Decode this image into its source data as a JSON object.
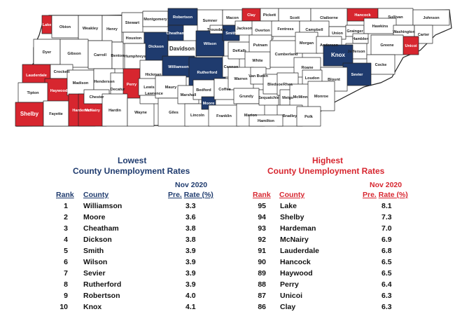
{
  "colors": {
    "lowest": "#1f3b6e",
    "highest": "#d7262f",
    "other": "#ffffff"
  },
  "map": {
    "counties": [
      {
        "name": "Lake",
        "group": "high"
      },
      {
        "name": "Obion",
        "group": "none"
      },
      {
        "name": "Weakley",
        "group": "none"
      },
      {
        "name": "Henry",
        "group": "none"
      },
      {
        "name": "Stewart",
        "group": "none"
      },
      {
        "name": "Montgomery",
        "group": "none"
      },
      {
        "name": "Robertson",
        "group": "low"
      },
      {
        "name": "Sumner",
        "group": "none"
      },
      {
        "name": "Macon",
        "group": "none"
      },
      {
        "name": "Clay",
        "group": "high"
      },
      {
        "name": "Pickett",
        "group": "none"
      },
      {
        "name": "Scott",
        "group": "none"
      },
      {
        "name": "Claiborne",
        "group": "none"
      },
      {
        "name": "Hancock",
        "group": "high"
      },
      {
        "name": "Sullivan",
        "group": "none"
      },
      {
        "name": "Johnson",
        "group": "none"
      },
      {
        "name": "Dyer",
        "group": "none"
      },
      {
        "name": "Gibson",
        "group": "none"
      },
      {
        "name": "Carroll",
        "group": "none"
      },
      {
        "name": "Benton",
        "group": "none"
      },
      {
        "name": "Houston",
        "group": "none"
      },
      {
        "name": "Cheatham",
        "group": "low"
      },
      {
        "name": "Dickson",
        "group": "low"
      },
      {
        "name": "Davidson",
        "group": "none"
      },
      {
        "name": "Wilson",
        "group": "low"
      },
      {
        "name": "Smith",
        "group": "low"
      },
      {
        "name": "Trousdale",
        "group": "none"
      },
      {
        "name": "Jackson",
        "group": "none"
      },
      {
        "name": "Overton",
        "group": "none"
      },
      {
        "name": "Fentress",
        "group": "none"
      },
      {
        "name": "Campbell",
        "group": "none"
      },
      {
        "name": "Union",
        "group": "none"
      },
      {
        "name": "Grainger",
        "group": "none"
      },
      {
        "name": "Hawkins",
        "group": "none"
      },
      {
        "name": "Washington",
        "group": "none"
      },
      {
        "name": "Carter",
        "group": "none"
      },
      {
        "name": "Unicoi",
        "group": "high"
      },
      {
        "name": "Greene",
        "group": "none"
      },
      {
        "name": "Hamblen",
        "group": "none"
      },
      {
        "name": "Jefferson",
        "group": "none"
      },
      {
        "name": "Cocke",
        "group": "none"
      },
      {
        "name": "Lauderdale",
        "group": "high"
      },
      {
        "name": "Crockett",
        "group": "none"
      },
      {
        "name": "Haywood",
        "group": "high"
      },
      {
        "name": "Madison",
        "group": "none"
      },
      {
        "name": "Henderson",
        "group": "none"
      },
      {
        "name": "Decatur",
        "group": "none"
      },
      {
        "name": "Humphreys",
        "group": "none"
      },
      {
        "name": "Perry",
        "group": "high"
      },
      {
        "name": "Hickman",
        "group": "none"
      },
      {
        "name": "Williamson",
        "group": "low"
      },
      {
        "name": "Rutherford",
        "group": "low"
      },
      {
        "name": "Cannon",
        "group": "none"
      },
      {
        "name": "DeKalb",
        "group": "none"
      },
      {
        "name": "Putnam",
        "group": "none"
      },
      {
        "name": "White",
        "group": "none"
      },
      {
        "name": "Cumberland",
        "group": "none"
      },
      {
        "name": "Morgan",
        "group": "none"
      },
      {
        "name": "Anderson",
        "group": "none"
      },
      {
        "name": "Roane",
        "group": "none"
      },
      {
        "name": "Knox",
        "group": "low"
      },
      {
        "name": "Sevier",
        "group": "low"
      },
      {
        "name": "Blount",
        "group": "none"
      },
      {
        "name": "Loudon",
        "group": "none"
      },
      {
        "name": "Tipton",
        "group": "none"
      },
      {
        "name": "Shelby",
        "group": "high"
      },
      {
        "name": "Fayette",
        "group": "none"
      },
      {
        "name": "Hardeman",
        "group": "high"
      },
      {
        "name": "McNairy",
        "group": "high"
      },
      {
        "name": "Chester",
        "group": "none"
      },
      {
        "name": "Hardin",
        "group": "none"
      },
      {
        "name": "Wayne",
        "group": "none"
      },
      {
        "name": "Lawrence",
        "group": "none"
      },
      {
        "name": "Lewis",
        "group": "none"
      },
      {
        "name": "Maury",
        "group": "none"
      },
      {
        "name": "Giles",
        "group": "none"
      },
      {
        "name": "Marshall",
        "group": "none"
      },
      {
        "name": "Lincoln",
        "group": "none"
      },
      {
        "name": "Bedford",
        "group": "none"
      },
      {
        "name": "Moore",
        "group": "low"
      },
      {
        "name": "Coffee",
        "group": "none"
      },
      {
        "name": "Franklin",
        "group": "none"
      },
      {
        "name": "Warren",
        "group": "none"
      },
      {
        "name": "Van Buren",
        "group": "none"
      },
      {
        "name": "Grundy",
        "group": "none"
      },
      {
        "name": "Marion",
        "group": "none"
      },
      {
        "name": "Sequatchie",
        "group": "none"
      },
      {
        "name": "Bledsoe",
        "group": "none"
      },
      {
        "name": "Rhea",
        "group": "none"
      },
      {
        "name": "Meigs",
        "group": "none"
      },
      {
        "name": "McMinn",
        "group": "none"
      },
      {
        "name": "Monroe",
        "group": "none"
      },
      {
        "name": "Bradley",
        "group": "none"
      },
      {
        "name": "Polk",
        "group": "none"
      },
      {
        "name": "Hamilton",
        "group": "none"
      }
    ]
  },
  "lowest": {
    "title_line1": "Lowest",
    "title_line2": "County Unemployment Rates",
    "period": "Nov 2020",
    "col_rank": "Rank",
    "col_county": "County",
    "col_rate_pre": "Pre.",
    "col_rate_main": "Rate (%)",
    "rows": [
      {
        "rank": "1",
        "county": "Williamson",
        "rate": "3.3"
      },
      {
        "rank": "2",
        "county": "Moore",
        "rate": "3.6"
      },
      {
        "rank": "3",
        "county": "Cheatham",
        "rate": "3.8"
      },
      {
        "rank": "4",
        "county": "Dickson",
        "rate": "3.8"
      },
      {
        "rank": "5",
        "county": "Smith",
        "rate": "3.9"
      },
      {
        "rank": "6",
        "county": "Wilson",
        "rate": "3.9"
      },
      {
        "rank": "7",
        "county": "Sevier",
        "rate": "3.9"
      },
      {
        "rank": "8",
        "county": "Rutherford",
        "rate": "3.9"
      },
      {
        "rank": "9",
        "county": "Robertson",
        "rate": "4.0"
      },
      {
        "rank": "10",
        "county": "Knox",
        "rate": "4.1"
      }
    ]
  },
  "highest": {
    "title_line1": "Highest",
    "title_line2": "County Unemployment Rates",
    "period": "Nov 2020",
    "col_rank": "Rank",
    "col_county": "County",
    "col_rate_pre": "Pre.",
    "col_rate_main": "Rate (%)",
    "rows": [
      {
        "rank": "95",
        "county": "Lake",
        "rate": "8.1"
      },
      {
        "rank": "94",
        "county": "Shelby",
        "rate": "7.3"
      },
      {
        "rank": "93",
        "county": "Hardeman",
        "rate": "7.0"
      },
      {
        "rank": "92",
        "county": "McNairy",
        "rate": "6.9"
      },
      {
        "rank": "91",
        "county": "Lauderdale",
        "rate": "6.8"
      },
      {
        "rank": "90",
        "county": "Hancock",
        "rate": "6.5"
      },
      {
        "rank": "89",
        "county": "Haywood",
        "rate": "6.5"
      },
      {
        "rank": "88",
        "county": "Perry",
        "rate": "6.4"
      },
      {
        "rank": "87",
        "county": "Unicoi",
        "rate": "6.3"
      },
      {
        "rank": "86",
        "county": "Clay",
        "rate": "6.3"
      }
    ]
  }
}
